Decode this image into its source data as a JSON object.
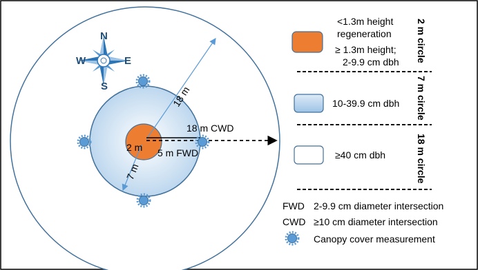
{
  "plot": {
    "compass": {
      "n": "N",
      "s": "S",
      "e": "E",
      "w": "W"
    },
    "labels": {
      "radius_18m": "18 m",
      "radius_7m": "7 m",
      "radius_2m": "2 m",
      "cwd_transect": "18 m CWD",
      "fwd_transect": "5 m FWD"
    }
  },
  "legend": {
    "regen_line1": "<1.3m height",
    "regen_line2": "regeneration",
    "small_trees_line1": "≥ 1.3m height;",
    "small_trees_line2": "2-9.9 cm dbh",
    "medium_trees": "10-39.9 cm dbh",
    "large_trees": "≥40 cm dbh",
    "circle_2m": "2 m circle",
    "circle_7m": "7 m circle",
    "circle_18m": "18 m circle",
    "fwd_abbr": "FWD",
    "fwd_desc": "2-9.9 cm diameter intersection",
    "cwd_abbr": "CWD",
    "cwd_desc": "≥10 cm diameter intersection",
    "canopy_desc": "Canopy cover measurement"
  },
  "colors": {
    "orange": "#ED7D31",
    "light_blue": "#BDD7EE",
    "blue_outline": "#41719C",
    "canopy_blue": "#5B9BD5",
    "compass_blue": "#2E75B6"
  }
}
